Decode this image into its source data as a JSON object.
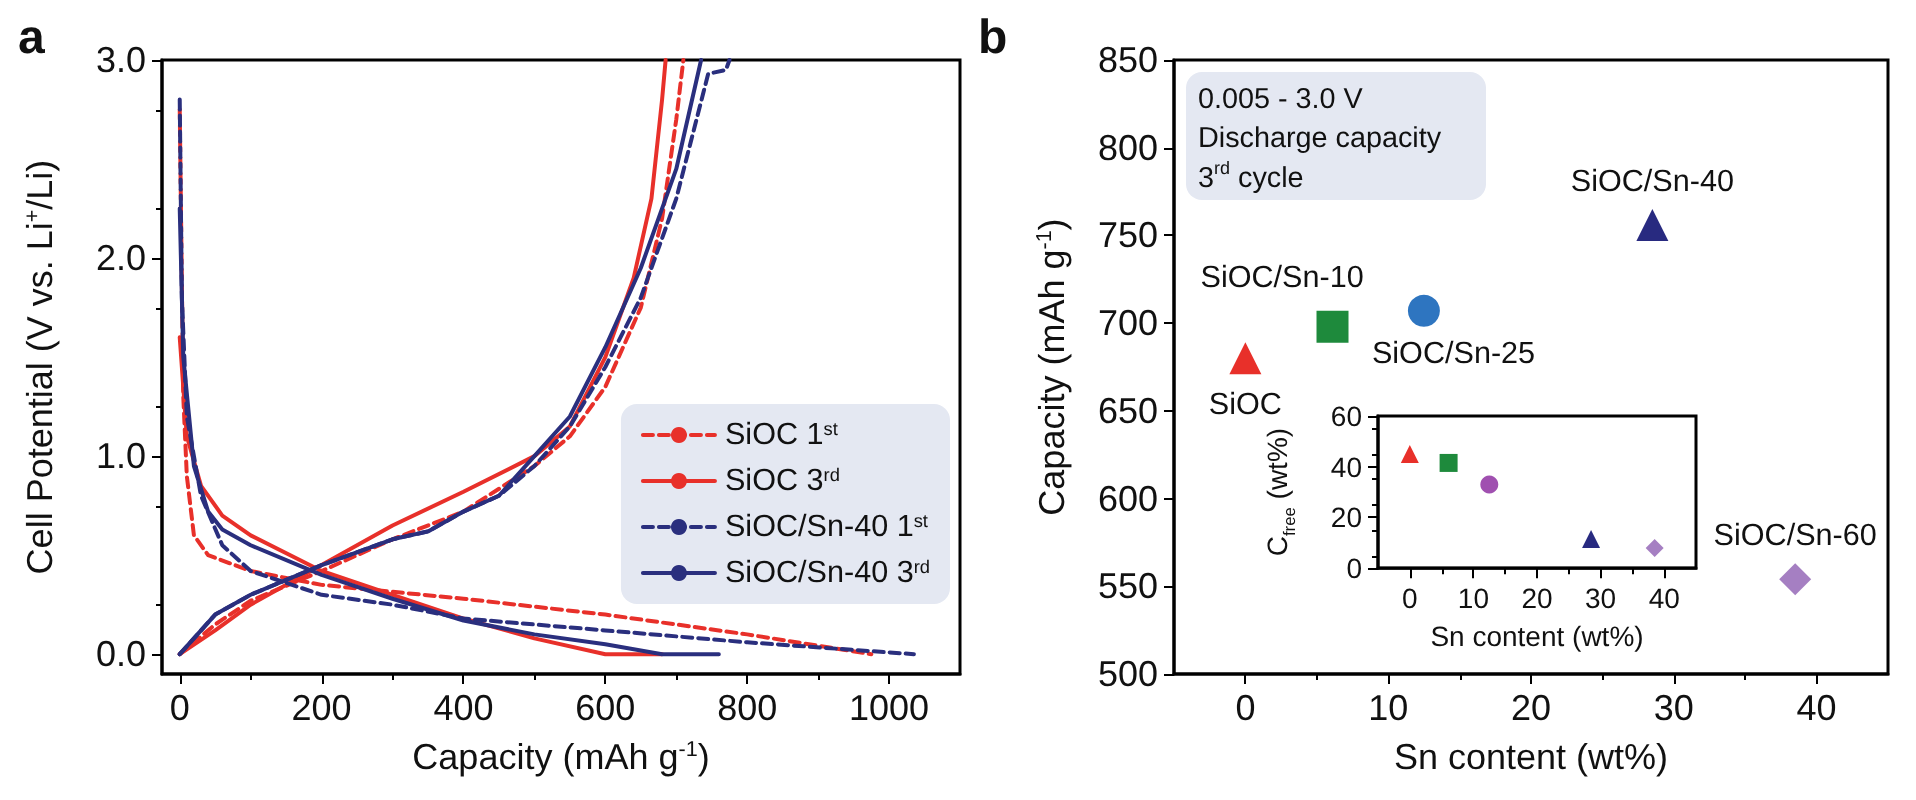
{
  "chart_data": [
    {
      "type": "line",
      "title": "a",
      "xlabel": "Capacity (mAh g$^{-1}$)",
      "ylabel": "Cell Potential (V vs. Li$^{+}$/Li)",
      "xlim": [
        -25,
        1100
      ],
      "xticks": [
        0,
        200,
        400,
        600,
        800,
        1000
      ],
      "ylim": [
        -0.1,
        3.0
      ],
      "yticks": [
        {
          "value": 0,
          "label": "0.0"
        },
        {
          "value": 1,
          "label": "1.0"
        },
        {
          "value": 2,
          "label": "2.0"
        },
        {
          "value": 3,
          "label": "3.0"
        }
      ],
      "legend": "bottom right",
      "series": [
        {
          "name": "SiOC 1$^{st}$",
          "color": "#e8302a",
          "line_style": "dashed",
          "x": [
            0,
            5,
            10,
            20,
            40,
            100,
            200,
            400,
            600,
            800,
            975,
            null,
            0,
            50,
            100,
            200,
            300,
            400,
            500,
            550,
            600,
            650,
            680,
            700,
            710
          ],
          "values": [
            2.75,
            1.3,
            0.9,
            0.6,
            0.5,
            0.42,
            0.35,
            0.28,
            0.2,
            0.1,
            0,
            null,
            0,
            0.15,
            0.27,
            0.42,
            0.58,
            0.72,
            0.95,
            1.1,
            1.35,
            1.75,
            2.2,
            2.7,
            3.0
          ]
        },
        {
          "name": "SiOC 3$^{rd}$",
          "color": "#e8302a",
          "line_style": "solid",
          "x": [
            0,
            10,
            30,
            60,
            100,
            200,
            300,
            400,
            500,
            600,
            680,
            null,
            0,
            50,
            100,
            200,
            300,
            400,
            500,
            550,
            600,
            640,
            665,
            680,
            685
          ],
          "values": [
            1.6,
            1.1,
            0.85,
            0.7,
            0.6,
            0.42,
            0.3,
            0.18,
            0.08,
            0,
            0,
            null,
            0,
            0.12,
            0.25,
            0.45,
            0.65,
            0.82,
            1.0,
            1.15,
            1.5,
            1.9,
            2.3,
            2.8,
            3.0
          ]
        },
        {
          "name": "SiOC/Sn-40 1$^{st}$",
          "color": "#2a2f7e",
          "line_style": "dashed",
          "x": [
            0,
            3,
            10,
            30,
            60,
            100,
            200,
            300,
            400,
            600,
            800,
            1035,
            null,
            0,
            50,
            100,
            200,
            300,
            350,
            400,
            450,
            500,
            550,
            600,
            650,
            700,
            745,
            770,
            775
          ],
          "values": [
            2.8,
            1.8,
            1.2,
            0.8,
            0.55,
            0.42,
            0.3,
            0.25,
            0.18,
            0.12,
            0.06,
            0,
            null,
            0,
            0.2,
            0.3,
            0.45,
            0.58,
            0.62,
            0.72,
            0.8,
            0.95,
            1.15,
            1.45,
            1.8,
            2.3,
            2.93,
            2.95,
            3.0
          ]
        },
        {
          "name": "SiOC/Sn-40 3$^{rd}$",
          "color": "#2a2f7e",
          "line_style": "solid",
          "x": [
            0,
            5,
            20,
            40,
            60,
            100,
            200,
            300,
            400,
            500,
            600,
            680,
            760,
            null,
            0,
            50,
            100,
            200,
            300,
            350,
            400,
            450,
            500,
            550,
            600,
            650,
            700,
            735
          ],
          "values": [
            2.25,
            1.5,
            0.95,
            0.72,
            0.63,
            0.55,
            0.4,
            0.28,
            0.17,
            0.1,
            0.05,
            0,
            0,
            null,
            0,
            0.2,
            0.3,
            0.45,
            0.58,
            0.62,
            0.72,
            0.8,
            1.0,
            1.2,
            1.55,
            1.95,
            2.45,
            3.0
          ]
        }
      ]
    },
    {
      "type": "scatter",
      "title": "b",
      "xlabel": "Sn content (wt%)",
      "ylabel": "Capacity (mAh g$^{-1}$)",
      "xlim": [
        -5,
        45
      ],
      "xticks": [
        0,
        10,
        20,
        30,
        40
      ],
      "ylim": [
        500,
        850
      ],
      "yticks": [
        500,
        550,
        600,
        650,
        700,
        750,
        800,
        850
      ],
      "annotations": [
        "0.005 - 3.0 V",
        "Discharge capacity",
        "3$^{rd}$ cycle"
      ],
      "series": [
        {
          "name": "SiOC",
          "color": "#e8302a",
          "marker": "triangle",
          "x": [
            0
          ],
          "values": [
            680
          ]
        },
        {
          "name": "SiOC/Sn-10",
          "color": "#1e8a3c",
          "marker": "square",
          "x": [
            6.1
          ],
          "values": [
            698
          ]
        },
        {
          "name": "SiOC/Sn-25",
          "color": "#2e75c0",
          "marker": "circle",
          "x": [
            12.5
          ],
          "values": [
            707
          ]
        },
        {
          "name": "SiOC/Sn-40",
          "color": "#282a80",
          "marker": "triangle",
          "x": [
            28.5
          ],
          "values": [
            756
          ]
        },
        {
          "name": "SiOC/Sn-60",
          "color": "#a57fc2",
          "marker": "diamond",
          "x": [
            38.5
          ],
          "values": [
            554
          ]
        }
      ]
    },
    {
      "type": "scatter",
      "xlabel": "Sn content (wt%)",
      "ylabel": "C$_{free}$ (wt%)",
      "xlim": [
        -5,
        45
      ],
      "xticks": [
        0,
        10,
        20,
        30,
        40
      ],
      "ylim": [
        0,
        60
      ],
      "yticks": [
        0,
        20,
        40,
        60
      ],
      "series": [
        {
          "color": "#e8302a",
          "marker": "triangle",
          "x": [
            0
          ],
          "values": [
            45
          ]
        },
        {
          "color": "#1e8a3c",
          "marker": "square",
          "x": [
            6.1
          ],
          "values": [
            41.5
          ]
        },
        {
          "color": "#a050b0",
          "marker": "circle",
          "x": [
            12.5
          ],
          "values": [
            33
          ]
        },
        {
          "color": "#282a80",
          "marker": "triangle",
          "x": [
            28.5
          ],
          "values": [
            11.5
          ]
        },
        {
          "color": "#a57fc2",
          "marker": "diamond",
          "x": [
            38.5
          ],
          "values": [
            8
          ]
        }
      ]
    }
  ]
}
